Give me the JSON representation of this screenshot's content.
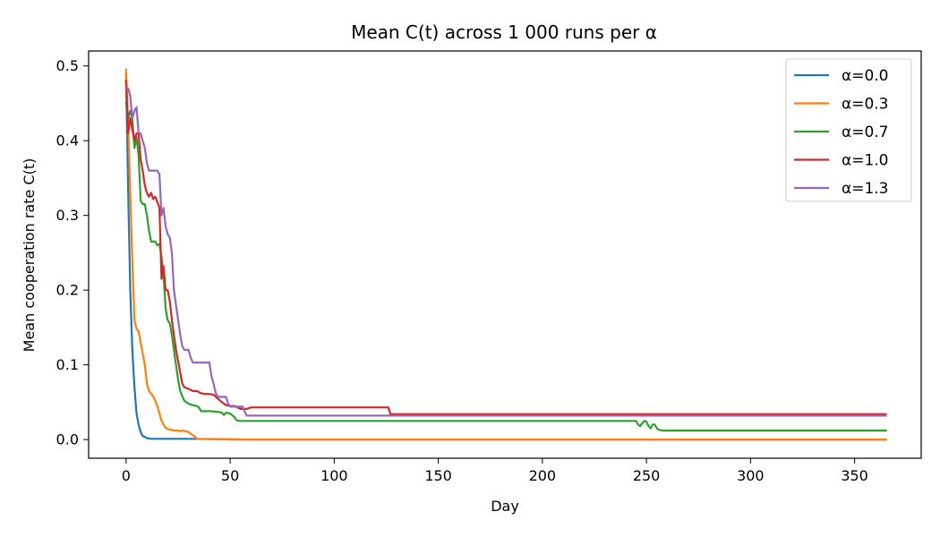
{
  "chart_data": {
    "type": "line",
    "title": "Mean C(t) across 1 000 runs per α",
    "xlabel": "Day",
    "ylabel": "Mean cooperation rate  C(t)",
    "xlim": [
      -18,
      382
    ],
    "ylim": [
      -0.025,
      0.52
    ],
    "xticks": [
      0,
      50,
      100,
      150,
      200,
      250,
      300,
      350
    ],
    "yticks": [
      0.0,
      0.1,
      0.2,
      0.3,
      0.4,
      0.5
    ],
    "ytick_labels": [
      "0.0",
      "0.1",
      "0.2",
      "0.3",
      "0.4",
      "0.5"
    ],
    "grid": false,
    "legend_position": "top-right",
    "series": [
      {
        "name": "α=0.0",
        "color": "#1f77b4",
        "points": [
          [
            0,
            0.49
          ],
          [
            1,
            0.33
          ],
          [
            2,
            0.2
          ],
          [
            3,
            0.12
          ],
          [
            4,
            0.07
          ],
          [
            5,
            0.035
          ],
          [
            6,
            0.02
          ],
          [
            7,
            0.01
          ],
          [
            8,
            0.005
          ],
          [
            10,
            0.002
          ],
          [
            12,
            0.001
          ],
          [
            15,
            0.001
          ],
          [
            30,
            0.001
          ],
          [
            60,
            0.0
          ],
          [
            365,
            0.0
          ]
        ]
      },
      {
        "name": "α=0.3",
        "color": "#ff7f0e",
        "points": [
          [
            0,
            0.495
          ],
          [
            1,
            0.42
          ],
          [
            2,
            0.33
          ],
          [
            3,
            0.24
          ],
          [
            4,
            0.16
          ],
          [
            5,
            0.148
          ],
          [
            6,
            0.145
          ],
          [
            7,
            0.13
          ],
          [
            8,
            0.115
          ],
          [
            9,
            0.1
          ],
          [
            10,
            0.075
          ],
          [
            11,
            0.065
          ],
          [
            13,
            0.058
          ],
          [
            14,
            0.052
          ],
          [
            15,
            0.045
          ],
          [
            16,
            0.035
          ],
          [
            17,
            0.025
          ],
          [
            18,
            0.02
          ],
          [
            19,
            0.016
          ],
          [
            20,
            0.014
          ],
          [
            22,
            0.013
          ],
          [
            23,
            0.012
          ],
          [
            25,
            0.012
          ],
          [
            26,
            0.011
          ],
          [
            27,
            0.012
          ],
          [
            29,
            0.011
          ],
          [
            30,
            0.01
          ],
          [
            31,
            0.008
          ],
          [
            32,
            0.006
          ],
          [
            33,
            0.004
          ],
          [
            34,
            0.001
          ],
          [
            50,
            0.0
          ],
          [
            365,
            0.0
          ]
        ]
      },
      {
        "name": "α=0.7",
        "color": "#2ca02c",
        "points": [
          [
            0,
            0.45
          ],
          [
            1,
            0.43
          ],
          [
            2,
            0.44
          ],
          [
            3,
            0.43
          ],
          [
            4,
            0.39
          ],
          [
            5,
            0.405
          ],
          [
            6,
            0.38
          ],
          [
            7,
            0.32
          ],
          [
            8,
            0.315
          ],
          [
            9,
            0.315
          ],
          [
            10,
            0.3
          ],
          [
            11,
            0.28
          ],
          [
            12,
            0.265
          ],
          [
            14,
            0.265
          ],
          [
            15,
            0.26
          ],
          [
            16,
            0.262
          ],
          [
            17,
            0.245
          ],
          [
            18,
            0.22
          ],
          [
            19,
            0.175
          ],
          [
            20,
            0.16
          ],
          [
            21,
            0.155
          ],
          [
            22,
            0.14
          ],
          [
            23,
            0.12
          ],
          [
            24,
            0.1
          ],
          [
            25,
            0.08
          ],
          [
            26,
            0.065
          ],
          [
            27,
            0.058
          ],
          [
            28,
            0.052
          ],
          [
            30,
            0.048
          ],
          [
            32,
            0.046
          ],
          [
            34,
            0.045
          ],
          [
            35,
            0.043
          ],
          [
            36,
            0.038
          ],
          [
            40,
            0.038
          ],
          [
            44,
            0.037
          ],
          [
            46,
            0.036
          ],
          [
            47,
            0.033
          ],
          [
            48,
            0.036
          ],
          [
            50,
            0.035
          ],
          [
            52,
            0.03
          ],
          [
            53,
            0.026
          ],
          [
            55,
            0.025
          ],
          [
            100,
            0.025
          ],
          [
            150,
            0.025
          ],
          [
            200,
            0.025
          ],
          [
            245,
            0.025
          ],
          [
            246,
            0.02
          ],
          [
            247,
            0.018
          ],
          [
            248,
            0.022
          ],
          [
            249,
            0.025
          ],
          [
            250,
            0.024
          ],
          [
            251,
            0.018
          ],
          [
            252,
            0.015
          ],
          [
            253,
            0.02
          ],
          [
            254,
            0.02
          ],
          [
            255,
            0.015
          ],
          [
            256,
            0.013
          ],
          [
            258,
            0.012
          ],
          [
            300,
            0.012
          ],
          [
            365,
            0.012
          ]
        ]
      },
      {
        "name": "α=1.0",
        "color": "#d62728",
        "points": [
          [
            0,
            0.48
          ],
          [
            1,
            0.41
          ],
          [
            2,
            0.43
          ],
          [
            3,
            0.415
          ],
          [
            4,
            0.4
          ],
          [
            5,
            0.41
          ],
          [
            6,
            0.41
          ],
          [
            7,
            0.375
          ],
          [
            8,
            0.36
          ],
          [
            9,
            0.34
          ],
          [
            10,
            0.33
          ],
          [
            11,
            0.325
          ],
          [
            12,
            0.33
          ],
          [
            13,
            0.322
          ],
          [
            14,
            0.325
          ],
          [
            15,
            0.318
          ],
          [
            16,
            0.31
          ],
          [
            17,
            0.215
          ],
          [
            18,
            0.232
          ],
          [
            19,
            0.2
          ],
          [
            20,
            0.2
          ],
          [
            21,
            0.185
          ],
          [
            22,
            0.16
          ],
          [
            23,
            0.14
          ],
          [
            24,
            0.12
          ],
          [
            25,
            0.105
          ],
          [
            26,
            0.09
          ],
          [
            27,
            0.075
          ],
          [
            28,
            0.07
          ],
          [
            30,
            0.068
          ],
          [
            32,
            0.065
          ],
          [
            34,
            0.065
          ],
          [
            36,
            0.062
          ],
          [
            38,
            0.061
          ],
          [
            40,
            0.061
          ],
          [
            42,
            0.06
          ],
          [
            44,
            0.055
          ],
          [
            46,
            0.05
          ],
          [
            48,
            0.046
          ],
          [
            50,
            0.045
          ],
          [
            52,
            0.045
          ],
          [
            55,
            0.041
          ],
          [
            58,
            0.041
          ],
          [
            60,
            0.043
          ],
          [
            100,
            0.043
          ],
          [
            126,
            0.043
          ],
          [
            127,
            0.034
          ],
          [
            200,
            0.034
          ],
          [
            300,
            0.034
          ],
          [
            365,
            0.034
          ]
        ]
      },
      {
        "name": "α=1.3",
        "color": "#9467bd",
        "points": [
          [
            0,
            0.47
          ],
          [
            1,
            0.47
          ],
          [
            2,
            0.46
          ],
          [
            3,
            0.43
          ],
          [
            4,
            0.44
          ],
          [
            5,
            0.445
          ],
          [
            6,
            0.41
          ],
          [
            7,
            0.41
          ],
          [
            8,
            0.4
          ],
          [
            9,
            0.39
          ],
          [
            10,
            0.37
          ],
          [
            11,
            0.36
          ],
          [
            12,
            0.36
          ],
          [
            15,
            0.36
          ],
          [
            16,
            0.355
          ],
          [
            17,
            0.3
          ],
          [
            18,
            0.31
          ],
          [
            19,
            0.285
          ],
          [
            20,
            0.275
          ],
          [
            21,
            0.27
          ],
          [
            22,
            0.25
          ],
          [
            23,
            0.2
          ],
          [
            24,
            0.18
          ],
          [
            25,
            0.16
          ],
          [
            26,
            0.14
          ],
          [
            27,
            0.125
          ],
          [
            28,
            0.12
          ],
          [
            30,
            0.12
          ],
          [
            31,
            0.11
          ],
          [
            32,
            0.103
          ],
          [
            40,
            0.103
          ],
          [
            41,
            0.085
          ],
          [
            42,
            0.075
          ],
          [
            43,
            0.063
          ],
          [
            44,
            0.057
          ],
          [
            48,
            0.057
          ],
          [
            49,
            0.048
          ],
          [
            50,
            0.044
          ],
          [
            56,
            0.044
          ],
          [
            57,
            0.037
          ],
          [
            58,
            0.032
          ],
          [
            100,
            0.032
          ],
          [
            150,
            0.032
          ],
          [
            200,
            0.032
          ],
          [
            300,
            0.032
          ],
          [
            365,
            0.032
          ]
        ]
      }
    ]
  }
}
